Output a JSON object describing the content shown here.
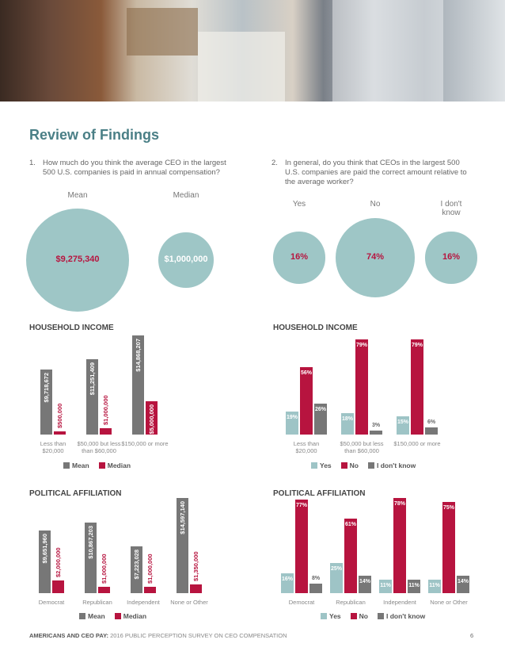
{
  "header": {
    "title": "Review of Findings"
  },
  "questions": [
    {
      "number": "1.",
      "text": "How much do you think the average CEO in the largest 500 U.S. companies is paid in annual compensation?"
    },
    {
      "number": "2.",
      "text": "In general, do you think that CEOs in the largest 500 U.S. companies are paid the correct amount relative to the average worker?"
    }
  ],
  "chart_data": [
    {
      "type": "bubble",
      "categories": [
        "Mean",
        "Median"
      ],
      "values": [
        9275340,
        1000000
      ],
      "value_labels": [
        "$9,275,340",
        "$1,000,000"
      ],
      "color": "#9ec6c6"
    },
    {
      "type": "bubble",
      "categories": [
        "Yes",
        "No",
        "I don't know"
      ],
      "values": [
        16,
        74,
        16
      ],
      "value_labels": [
        "16%",
        "74%",
        "16%"
      ],
      "color": "#9ec6c6"
    },
    {
      "type": "bar",
      "title": "HOUSEHOLD INCOME",
      "categories": [
        "Less than $20,000",
        "$50,000 but less than $60,000",
        "$150,000 or more"
      ],
      "series": [
        {
          "name": "Mean",
          "color": "#777777",
          "values": [
            9718672,
            11251409,
            14868207
          ],
          "value_labels": [
            "$9,718,672",
            "$11,251,409",
            "$14,868,207"
          ]
        },
        {
          "name": "Median",
          "color": "#b7143f",
          "values": [
            500000,
            1000000,
            5000000
          ],
          "value_labels": [
            "$500,000",
            "$1,000,000",
            "$5,000,000"
          ]
        }
      ]
    },
    {
      "type": "bar",
      "title": "HOUSEHOLD INCOME",
      "categories": [
        "Less than $20,000",
        "$50,000 but less than $60,000",
        "$150,000 or more"
      ],
      "series": [
        {
          "name": "Yes",
          "color": "#9ec4c6",
          "values": [
            19,
            18,
            15
          ],
          "value_labels": [
            "19%",
            "18%",
            "15%"
          ]
        },
        {
          "name": "No",
          "color": "#b7143f",
          "values": [
            56,
            79,
            79
          ],
          "value_labels": [
            "56%",
            "79%",
            "79%"
          ]
        },
        {
          "name": "I don't know",
          "color": "#777777",
          "values": [
            26,
            3,
            6
          ],
          "value_labels": [
            "26%",
            "3%",
            "6%"
          ]
        }
      ]
    },
    {
      "type": "bar",
      "title": "POLITICAL AFFILIATION",
      "categories": [
        "Democrat",
        "Republican",
        "Independent",
        "None or Other"
      ],
      "series": [
        {
          "name": "Mean",
          "color": "#777777",
          "values": [
            9651960,
            10867203,
            7223028,
            14597140
          ],
          "value_labels": [
            "$9,651,960",
            "$10,867,203",
            "$7,223,028",
            "$14,597,140"
          ]
        },
        {
          "name": "Median",
          "color": "#b7143f",
          "values": [
            2000000,
            1000000,
            1000000,
            1350000
          ],
          "value_labels": [
            "$2,000,000",
            "$1,000,000",
            "$1,000,000",
            "$1,350,000"
          ]
        }
      ]
    },
    {
      "type": "bar",
      "title": "POLITICAL AFFILIATION",
      "categories": [
        "Democrat",
        "Republican",
        "Independent",
        "None or Other"
      ],
      "series": [
        {
          "name": "Yes",
          "color": "#9ec4c6",
          "values": [
            16,
            25,
            11,
            11
          ],
          "value_labels": [
            "16%",
            "25%",
            "11%",
            "11%"
          ]
        },
        {
          "name": "No",
          "color": "#b7143f",
          "values": [
            77,
            61,
            78,
            75
          ],
          "value_labels": [
            "77%",
            "61%",
            "78%",
            "75%"
          ]
        },
        {
          "name": "I don't know",
          "color": "#777777",
          "values": [
            8,
            14,
            11,
            14
          ],
          "value_labels": [
            "8%",
            "14%",
            "11%",
            "14%"
          ]
        }
      ]
    }
  ],
  "footer": {
    "bold": "AMERICANS AND CEO PAY:",
    "text": "2016 PUBLIC PERCEPTION SURVEY ON CEO COMPENSATION",
    "page": 6
  }
}
